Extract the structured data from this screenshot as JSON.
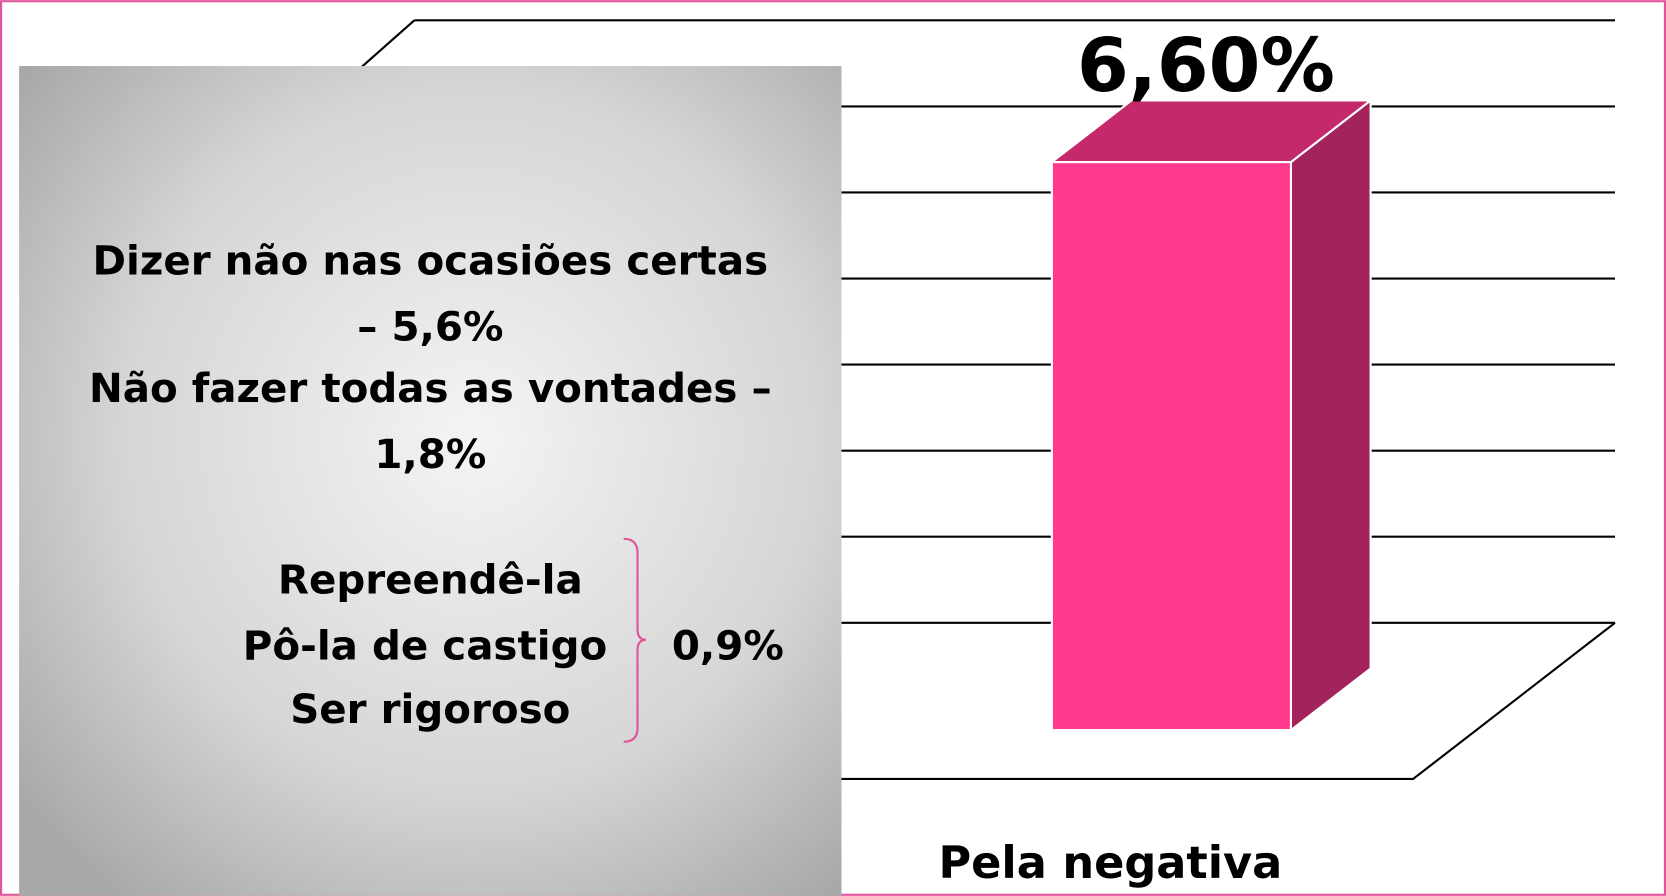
{
  "chart_data": {
    "type": "bar3d",
    "categories": [
      "Pela negativa"
    ],
    "values": [
      6.6
    ],
    "value_labels": [
      "6,60%"
    ],
    "color": "#ff3a8c",
    "ylim": [
      0,
      7
    ],
    "yticks": [
      0,
      1,
      2,
      3,
      4,
      5,
      6,
      7
    ],
    "grid": true,
    "annotations": [
      "Dizer não nas ocasiões certas",
      "– 5,6%",
      "Não fazer todas as vontades –",
      "1,8%",
      "Repreendê-la",
      "Pô-la de castigo",
      "Ser rigoroso",
      "0,9%"
    ]
  }
}
